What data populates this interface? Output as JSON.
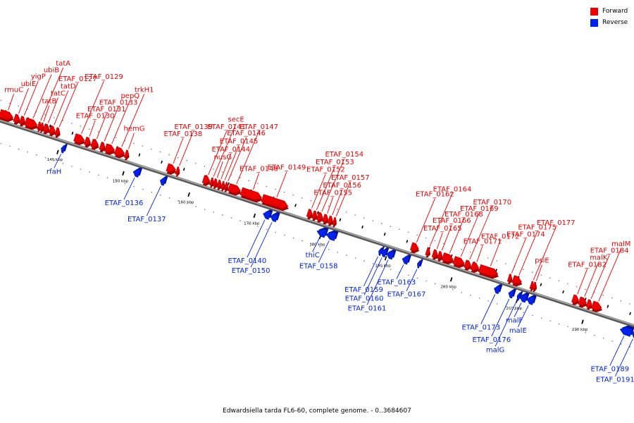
{
  "colors": {
    "forward": "#ee0000",
    "forward_dark": "#aa0000",
    "reverse": "#0022ee",
    "reverse_dark": "#001199",
    "backbone": "#888888"
  },
  "legend": {
    "forward_label": "Forward",
    "reverse_label": "Reverse"
  },
  "caption": "Edwardsiella tarda FL6-60, complete genome. - 0..3684607",
  "scale": {
    "unit": "kbp",
    "ticks": [
      140,
      150,
      160,
      170,
      180,
      190,
      200,
      210,
      220
    ]
  },
  "genes_forward": [
    {
      "name": "rmuC",
      "start": 130.3,
      "end": 132.3
    },
    {
      "name": "ubiE",
      "start": 132.5,
      "end": 133.3
    },
    {
      "name": "yigP",
      "start": 133.4,
      "end": 134.1
    },
    {
      "name": "ubiB",
      "start": 134.2,
      "end": 136.0
    },
    {
      "name": "tatA",
      "start": 136.1,
      "end": 136.4
    },
    {
      "name": "tatB",
      "start": 136.5,
      "end": 136.9
    },
    {
      "name": "tatC",
      "start": 137.0,
      "end": 137.8
    },
    {
      "name": "tatD",
      "start": 137.9,
      "end": 138.7
    },
    {
      "name": "ETAF_0127",
      "start": 138.8,
      "end": 139.4
    },
    {
      "name": "ETAF_0129",
      "start": 141.7,
      "end": 143.2
    },
    {
      "name": "ETAF_0130",
      "start": 143.3,
      "end": 144.1
    },
    {
      "name": "ETAF_0131",
      "start": 144.3,
      "end": 145.3
    },
    {
      "name": "ETAF_0133",
      "start": 145.6,
      "end": 146.3
    },
    {
      "name": "pepQ",
      "start": 146.4,
      "end": 147.8
    },
    {
      "name": "trkH1",
      "start": 147.9,
      "end": 149.3
    },
    {
      "name": "hemG",
      "start": 149.4,
      "end": 149.9
    },
    {
      "name": "ETAF_0138",
      "start": 155.8,
      "end": 157.1
    },
    {
      "name": "ETAF_0139",
      "start": 157.2,
      "end": 157.6
    },
    {
      "name": "ETAF_0141",
      "start": 161.3,
      "end": 162.3
    },
    {
      "name": "secE",
      "start": 162.4,
      "end": 162.8
    },
    {
      "name": "nusG",
      "start": 162.9,
      "end": 163.4
    },
    {
      "name": "ETAF_0144",
      "start": 163.5,
      "end": 164.0
    },
    {
      "name": "ETAF_0145",
      "start": 164.1,
      "end": 164.5
    },
    {
      "name": "ETAF_0146",
      "start": 164.6,
      "end": 165.0
    },
    {
      "name": "ETAF_0147",
      "start": 165.2,
      "end": 167.0
    },
    {
      "name": "ETAF_0148",
      "start": 167.1,
      "end": 170.2
    },
    {
      "name": "ETAF_0149",
      "start": 170.3,
      "end": 174.2
    },
    {
      "name": "ETAF_0152",
      "start": 177.2,
      "end": 177.9
    },
    {
      "name": "ETAF_0153",
      "start": 178.0,
      "end": 178.6
    },
    {
      "name": "ETAF_0154",
      "start": 178.7,
      "end": 179.5
    },
    {
      "name": "ETAF_0155",
      "start": 179.6,
      "end": 180.3
    },
    {
      "name": "ETAF_0156",
      "start": 180.4,
      "end": 181.0
    },
    {
      "name": "ETAF_0157",
      "start": 181.1,
      "end": 181.5
    },
    {
      "name": "ETAF_0162",
      "start": 193.0,
      "end": 194.1
    },
    {
      "name": "ETAF_0164",
      "start": 195.3,
      "end": 195.8
    },
    {
      "name": "ETAF_0165",
      "start": 196.3,
      "end": 197.0
    },
    {
      "name": "ETAF_0166",
      "start": 197.1,
      "end": 197.7
    },
    {
      "name": "ETAF_0168",
      "start": 197.8,
      "end": 199.4
    },
    {
      "name": "ETAF_0169",
      "start": 199.5,
      "end": 201.1
    },
    {
      "name": "ETAF_0170",
      "start": 201.2,
      "end": 202.1
    },
    {
      "name": "ETAF_0171",
      "start": 202.2,
      "end": 203.3
    },
    {
      "name": "ETAF_0172",
      "start": 203.4,
      "end": 206.2
    },
    {
      "name": "ETAF_0174",
      "start": 207.8,
      "end": 208.3
    },
    {
      "name": "ETAF_0175",
      "start": 208.5,
      "end": 209.8
    },
    {
      "name": "ETAF_0177",
      "start": 211.2,
      "end": 211.5
    },
    {
      "name": "psiE",
      "start": 211.6,
      "end": 212.0
    },
    {
      "name": "ETAF_0182",
      "start": 217.6,
      "end": 218.5
    },
    {
      "name": "malK",
      "start": 218.6,
      "end": 219.7
    },
    {
      "name": "ETAF_0184",
      "start": 219.8,
      "end": 220.5
    },
    {
      "name": "malM",
      "start": 220.6,
      "end": 222.0
    }
  ],
  "genes_reverse": [
    {
      "name": "rfaH",
      "start": 140.3,
      "end": 140.8
    },
    {
      "name": "ETAF_0136",
      "start": 151.3,
      "end": 152.2
    },
    {
      "name": "ETAF_0137",
      "start": 155.4,
      "end": 156.1
    },
    {
      "name": "ETAF_0140",
      "start": 171.1,
      "end": 172.1
    },
    {
      "name": "ETAF_0150",
      "start": 172.2,
      "end": 173.2
    },
    {
      "name": "thiC",
      "start": 179.3,
      "end": 180.6
    },
    {
      "name": "ETAF_0158",
      "start": 180.7,
      "end": 182.1
    },
    {
      "name": "ETAF_0159",
      "start": 188.7,
      "end": 189.0
    },
    {
      "name": "ETAF_0160",
      "start": 189.1,
      "end": 189.8
    },
    {
      "name": "ETAF_0161",
      "start": 189.9,
      "end": 190.9
    },
    {
      "name": "ETAF_0163",
      "start": 192.3,
      "end": 193.2
    },
    {
      "name": "ETAF_0167",
      "start": 194.6,
      "end": 195.0
    },
    {
      "name": "ETAF_0173",
      "start": 206.3,
      "end": 207.1
    },
    {
      "name": "ETAF_0176",
      "start": 208.5,
      "end": 209.2
    },
    {
      "name": "malG",
      "start": 209.8,
      "end": 210.1
    },
    {
      "name": "malF",
      "start": 210.2,
      "end": 211.2
    },
    {
      "name": "malE",
      "start": 211.3,
      "end": 212.3
    },
    {
      "name": "ETAF_0189",
      "start": 225.5,
      "end": 227.2
    },
    {
      "name": "ETAF_0191",
      "start": 227.3,
      "end": 228.1
    }
  ]
}
